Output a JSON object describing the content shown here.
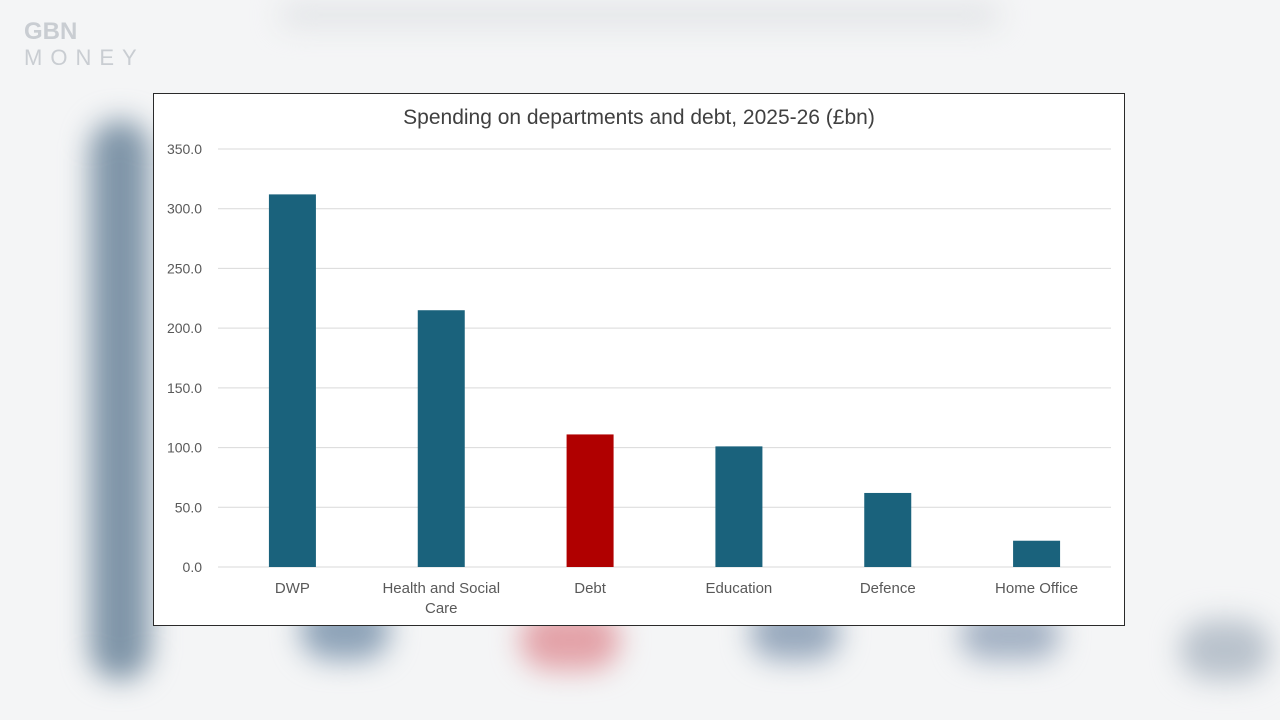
{
  "brand": {
    "line1": "GBN",
    "line2": "MONEY"
  },
  "chart_data": {
    "type": "bar",
    "title": "Spending on departments and debt, 2025-26 (£bn)",
    "categories": [
      "DWP",
      "Health and Social Care",
      "Debt",
      "Education",
      "Defence",
      "Home Office"
    ],
    "values": [
      312,
      215,
      111,
      101,
      62,
      22
    ],
    "colors": [
      "#1a627c",
      "#1a627c",
      "#b00000",
      "#1a627c",
      "#1a627c",
      "#1a627c"
    ],
    "xlabel": "",
    "ylabel": "",
    "ylim": [
      0,
      350
    ],
    "yticks": [
      "0.0",
      "50.0",
      "100.0",
      "150.0",
      "200.0",
      "250.0",
      "300.0",
      "350.0"
    ],
    "grid": true
  }
}
